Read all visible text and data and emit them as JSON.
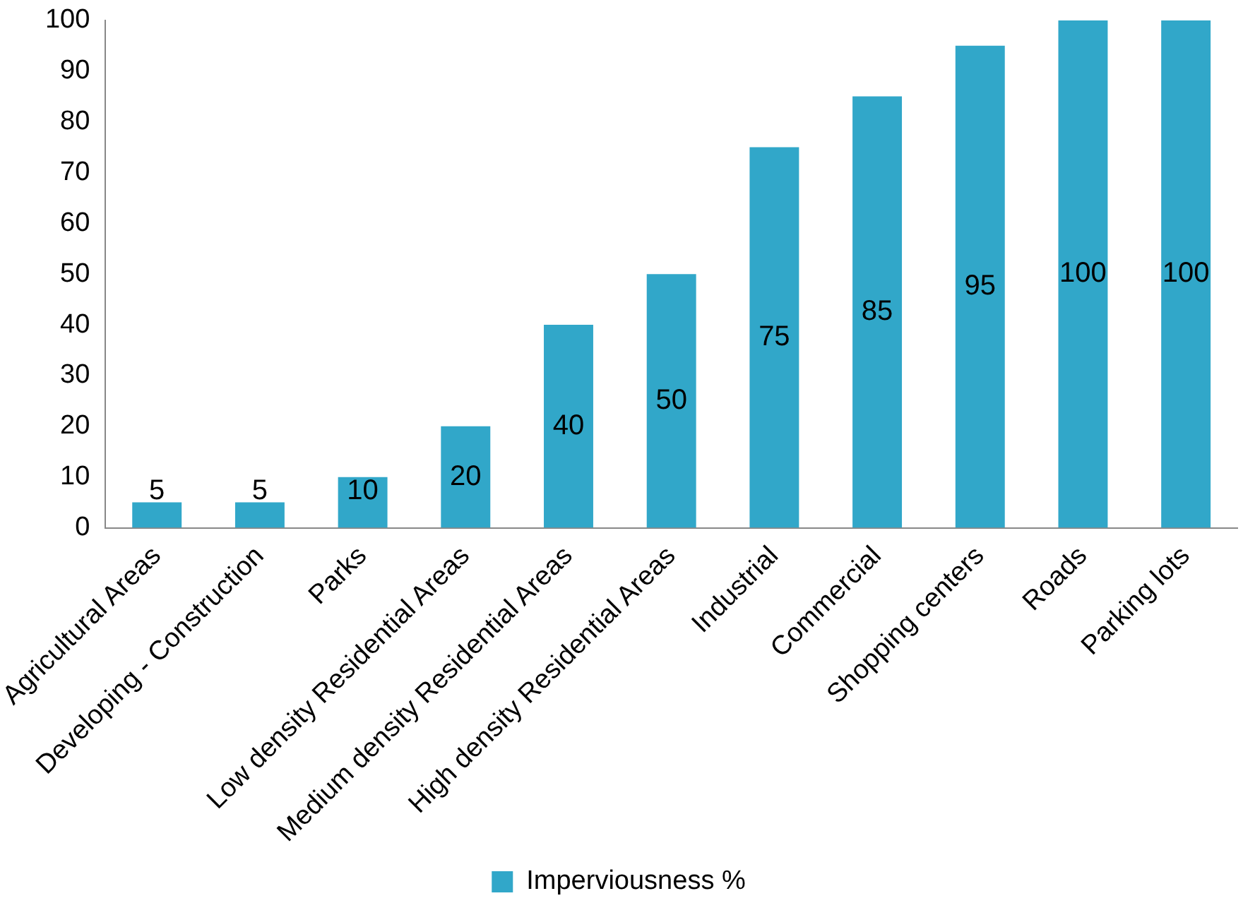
{
  "chart_data": {
    "type": "bar",
    "categories": [
      "Agricultural Areas",
      "Developing - Construction",
      "Parks",
      "Low density Residential Areas",
      "Medium density Residential Areas",
      "High density Residential Areas",
      "Industrial",
      "Commercial",
      "Shopping centers",
      "Roads",
      "Parking lots"
    ],
    "series": [
      {
        "name": "Imperviousness %",
        "color": "#31a7c9",
        "values": [
          5,
          5,
          10,
          20,
          40,
          50,
          75,
          85,
          95,
          100,
          100
        ]
      }
    ],
    "ylim": [
      0,
      100
    ],
    "yticks": [
      0,
      10,
      20,
      30,
      40,
      50,
      60,
      70,
      80,
      90,
      100
    ],
    "grid": false,
    "legend": "bottom",
    "data_labels": true
  }
}
